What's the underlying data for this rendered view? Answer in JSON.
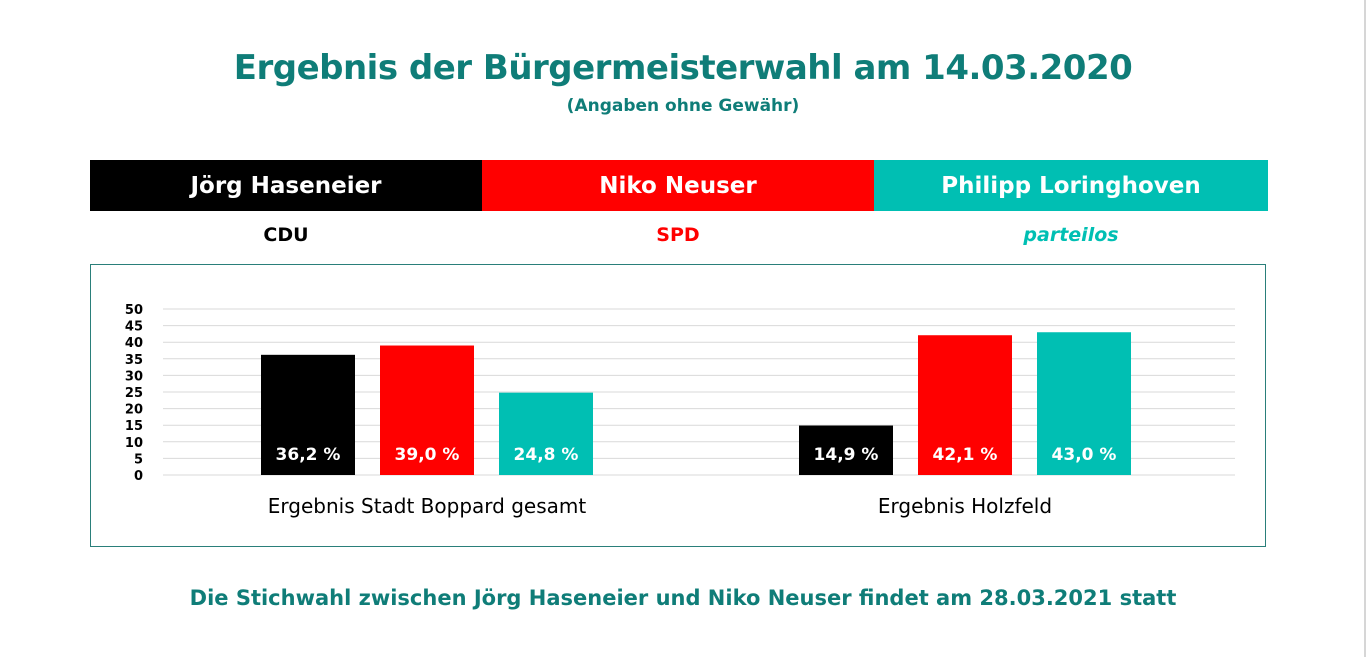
{
  "title": "Ergebnis der Bürgermeisterwahl am 14.03.2020",
  "subtitle": "(Angaben ohne Gewähr)",
  "candidates": [
    {
      "name": "Jörg Haseneier",
      "party": "CDU",
      "bar_color": "#000000",
      "party_color": "#000000",
      "party_italic": false
    },
    {
      "name": "Niko Neuser",
      "party": "SPD",
      "bar_color": "#ff0000",
      "party_color": "#ff0000",
      "party_italic": false
    },
    {
      "name": "Philipp Loringhoven",
      "party": "parteilos",
      "bar_color": "#00bfb3",
      "party_color": "#00bfb3",
      "party_italic": true
    }
  ],
  "chart_data": {
    "type": "bar",
    "categories": [
      "Ergebnis Stadt Boppard gesamt",
      "Ergebnis Holzfeld"
    ],
    "series": [
      {
        "name": "Jörg Haseneier",
        "color": "#000000",
        "values": [
          36.2,
          14.9
        ],
        "labels": [
          "36,2 %",
          "14,9 %"
        ]
      },
      {
        "name": "Niko Neuser",
        "color": "#ff0000",
        "values": [
          39.0,
          42.1
        ],
        "labels": [
          "39,0 %",
          "42,1 %"
        ]
      },
      {
        "name": "Philipp Loringhoven",
        "color": "#00bfb3",
        "values": [
          24.8,
          43.0
        ],
        "labels": [
          "24,8 %",
          "43,0 %"
        ]
      }
    ],
    "ylim": [
      0,
      50
    ],
    "yticks": [
      0,
      5,
      10,
      15,
      20,
      25,
      30,
      35,
      40,
      45,
      50
    ],
    "grid": true,
    "xlabel": "",
    "ylabel": ""
  },
  "footer": "Die Stichwahl zwischen Jörg Haseneier und Niko Neuser findet am 28.03.2021 statt"
}
